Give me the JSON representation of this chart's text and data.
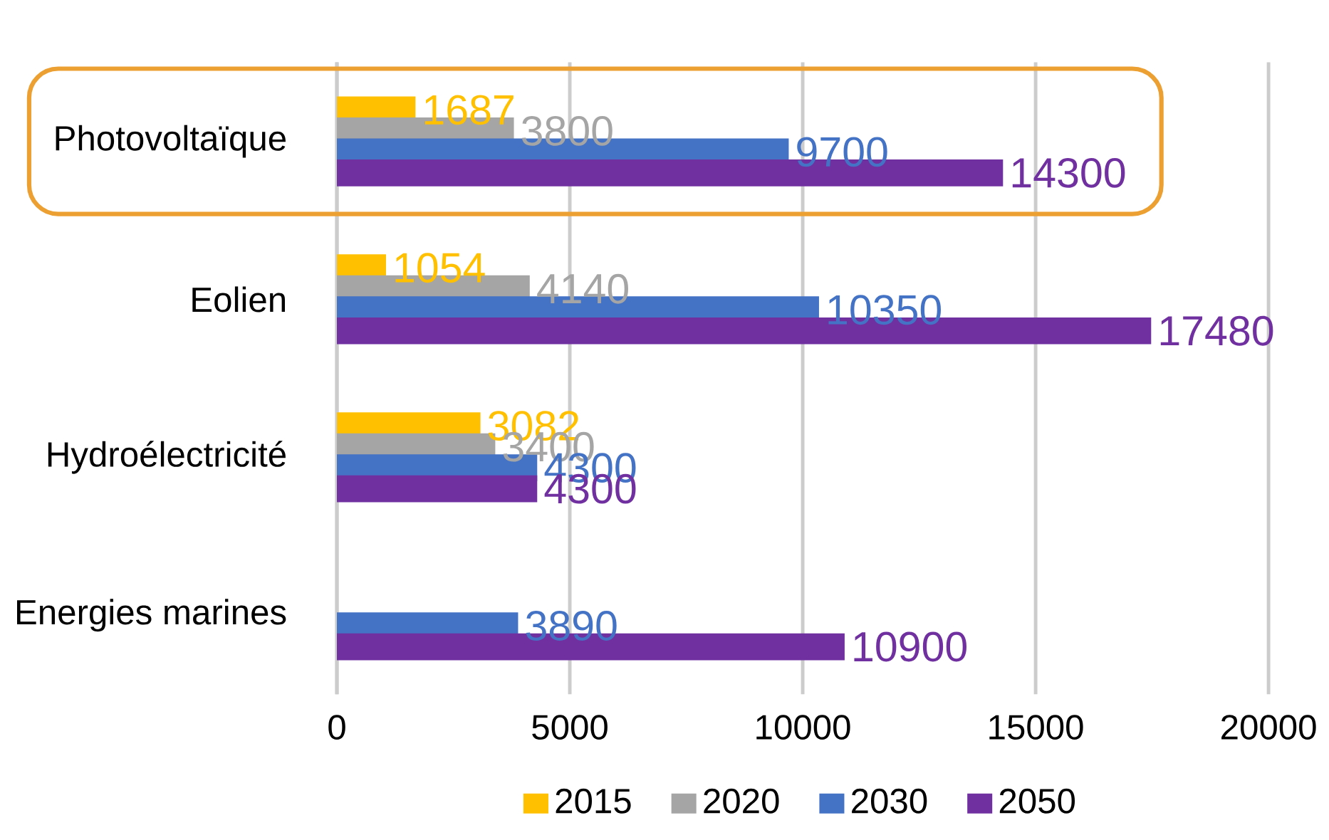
{
  "chart_data": {
    "type": "bar",
    "orientation": "horizontal",
    "categories": [
      "Photovoltaïque",
      "Eolien",
      "Hydroélectricité",
      "Energies marines"
    ],
    "series": [
      {
        "name": "2015",
        "color": "#ffc000",
        "values": [
          1687,
          1054,
          3082,
          null
        ]
      },
      {
        "name": "2020",
        "color": "#a5a5a5",
        "values": [
          3800,
          4140,
          3400,
          null
        ]
      },
      {
        "name": "2030",
        "color": "#4472c4",
        "values": [
          9700,
          10350,
          4300,
          3890
        ]
      },
      {
        "name": "2050",
        "color": "#7030a0",
        "values": [
          14300,
          17480,
          4300,
          10900
        ]
      }
    ],
    "xlim": [
      0,
      20000
    ],
    "xticks": [
      0,
      5000,
      10000,
      15000,
      20000
    ],
    "grid": "x",
    "legend": "bottom",
    "data_labels": true
  }
}
